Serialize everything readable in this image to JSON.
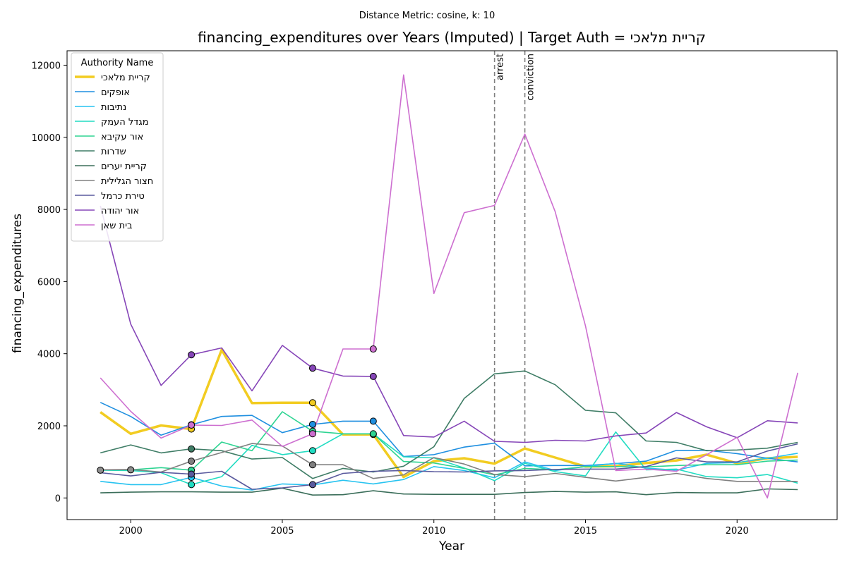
{
  "chart_data": {
    "type": "line",
    "suptitle": "Distance Metric: cosine, k: 10",
    "title": "financing_expenditures over Years (Imputed) | Target Auth = קריית מלאכי",
    "xlabel": "Year",
    "ylabel": "financing_expenditures",
    "xlim": [
      1997.9,
      2023.3
    ],
    "ylim": [
      -600,
      12400
    ],
    "xticks": [
      2000,
      2005,
      2010,
      2015,
      2020
    ],
    "yticks": [
      0,
      2000,
      4000,
      6000,
      8000,
      10000,
      12000
    ],
    "grid": false,
    "legend": {
      "title": "Authority Name",
      "placement": "top-left"
    },
    "events": [
      {
        "label": "arrest",
        "x": 2012
      },
      {
        "label": "conviction",
        "x": 2013
      }
    ],
    "x": [
      1999,
      2000,
      2001,
      2002,
      2003,
      2004,
      2005,
      2006,
      2007,
      2008,
      2009,
      2010,
      2011,
      2012,
      2013,
      2014,
      2015,
      2016,
      2017,
      2018,
      2019,
      2020,
      2021,
      2022
    ],
    "series": [
      {
        "name": "קריית מלאכי",
        "color": "#f2cc21",
        "width": 3.5,
        "values": [
          2380,
          1780,
          2010,
          1910,
          4110,
          2630,
          2640,
          2640,
          1760,
          1760,
          580,
          1020,
          1100,
          950,
          1370,
          1120,
          870,
          880,
          970,
          1040,
          1200,
          960,
          1100,
          1140
        ],
        "imputed_years": [
          2002,
          2006,
          2008
        ]
      },
      {
        "name": "אופקים",
        "color": "#1f8fe0",
        "width": 1.6,
        "values": [
          2650,
          2260,
          1740,
          2030,
          2260,
          2290,
          1810,
          2040,
          2130,
          2130,
          1150,
          1200,
          1410,
          1520,
          890,
          900,
          900,
          950,
          1020,
          1320,
          1320,
          1230,
          1100,
          1000
        ],
        "imputed_years": [
          2002,
          2006,
          2008
        ]
      },
      {
        "name": "נתיבות",
        "color": "#27c3f0",
        "width": 1.6,
        "values": [
          460,
          370,
          370,
          570,
          330,
          220,
          390,
          360,
          490,
          390,
          510,
          870,
          760,
          560,
          1000,
          760,
          870,
          960,
          830,
          770,
          960,
          980,
          1100,
          1240
        ],
        "imputed_years": [
          2002
        ]
      },
      {
        "name": "מגדל העמק",
        "color": "#21dcc2",
        "width": 1.6,
        "values": [
          770,
          760,
          700,
          370,
          590,
          1460,
          1200,
          1310,
          1780,
          1780,
          1140,
          1110,
          830,
          480,
          960,
          730,
          610,
          1830,
          780,
          800,
          590,
          560,
          650,
          410
        ],
        "imputed_years": [
          2002,
          2006
        ]
      },
      {
        "name": "אור עקיבא",
        "color": "#2ed492",
        "width": 1.6,
        "values": [
          780,
          780,
          840,
          770,
          1550,
          1310,
          2390,
          1850,
          1780,
          1780,
          1010,
          970,
          820,
          640,
          820,
          780,
          870,
          870,
          860,
          900,
          920,
          920,
          1020,
          1050
        ],
        "imputed_years": [
          2002,
          2006,
          2008
        ]
      },
      {
        "name": "שדרות",
        "color": "#3f7d66",
        "width": 1.6,
        "values": [
          1250,
          1470,
          1250,
          1360,
          1310,
          1080,
          1120,
          540,
          820,
          720,
          880,
          1420,
          2760,
          3440,
          3520,
          3140,
          2430,
          2360,
          1580,
          1540,
          1310,
          1330,
          1380,
          1540
        ],
        "imputed_years": [
          2002
        ]
      },
      {
        "name": "קריית יערים",
        "color": "#3b6e5a",
        "width": 1.6,
        "values": [
          140,
          160,
          170,
          170,
          160,
          160,
          270,
          80,
          90,
          200,
          110,
          100,
          100,
          100,
          150,
          180,
          160,
          170,
          90,
          150,
          140,
          140,
          250,
          230
        ],
        "imputed_years": []
      },
      {
        "name": "חצור הגלילית",
        "color": "#808080",
        "width": 1.6,
        "values": [
          780,
          790,
          720,
          1020,
          1260,
          1510,
          1440,
          920,
          920,
          540,
          640,
          1120,
          940,
          650,
          590,
          680,
          570,
          470,
          570,
          680,
          540,
          460,
          460,
          460
        ],
        "imputed_years": [
          2002,
          2006
        ]
      },
      {
        "name": "טירת כרמל",
        "color": "#5a5a9e",
        "width": 1.6,
        "values": [
          700,
          610,
          710,
          660,
          740,
          240,
          280,
          370,
          680,
          740,
          760,
          730,
          720,
          750,
          760,
          790,
          800,
          800,
          870,
          1110,
          1000,
          1000,
          1300,
          1500
        ],
        "imputed_years": [
          2002,
          2006
        ]
      },
      {
        "name": "אור יהודה",
        "color": "#8646b8",
        "width": 1.6,
        "values": [
          8100,
          4820,
          3120,
          3970,
          4160,
          2970,
          4230,
          3600,
          3380,
          3370,
          1730,
          1690,
          2130,
          1570,
          1540,
          1600,
          1580,
          1720,
          1800,
          2370,
          1970,
          1670,
          2140,
          2080
        ],
        "imputed_years": [
          2002,
          2006,
          2008
        ]
      },
      {
        "name": "בית שאן",
        "color": "#cd6fd0",
        "width": 1.6,
        "values": [
          3330,
          2400,
          1660,
          2020,
          2010,
          2160,
          1430,
          1780,
          4130,
          4130,
          11730,
          5670,
          7910,
          8110,
          10090,
          7940,
          4770,
          760,
          800,
          740,
          1200,
          1680,
          0,
          3470
        ],
        "imputed_years": [
          2002,
          2006,
          2008
        ]
      }
    ],
    "imputed_markers": [
      {
        "color": "#8e8e8e",
        "x": 1999,
        "y": 770
      },
      {
        "color": "#8e8e8e",
        "x": 2000,
        "y": 780
      }
    ]
  }
}
